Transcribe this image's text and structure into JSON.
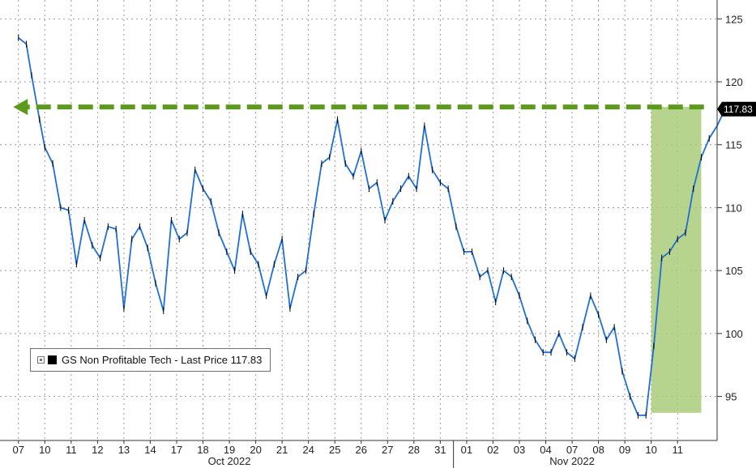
{
  "legend": {
    "label": "GS Non Profitable Tech - Last Price 117.83"
  },
  "colors": {
    "line": "#1f6fd6",
    "candle": "#000000",
    "arrow": "#5b9a1a",
    "highlight": "#a9cd7a",
    "last_price_badge": "#000000"
  },
  "chart_data": {
    "type": "line",
    "series": [
      {
        "name": "GS Non Profitable Tech",
        "x": [
          0,
          0.3,
          0.5,
          0.8,
          1.0,
          1.3,
          1.6,
          1.9,
          2.2,
          2.5,
          2.8,
          3.1,
          3.4,
          3.7,
          4.0,
          4.3,
          4.6,
          4.9,
          5.2,
          5.5,
          5.8,
          6.1,
          6.4,
          6.7,
          7.0,
          7.3,
          7.6,
          7.9,
          8.2,
          8.5,
          8.8,
          9.1,
          9.4,
          9.7,
          10.0,
          10.3,
          10.6,
          10.9,
          11.2,
          11.5,
          11.8,
          12.1,
          12.4,
          12.7,
          13.0,
          13.3,
          13.6,
          13.9,
          14.2,
          14.5,
          14.8,
          15.1,
          15.4,
          15.7,
          16.0,
          16.3,
          16.6,
          16.9,
          17.2,
          17.5,
          17.8,
          18.1,
          18.4,
          18.7,
          19.0,
          19.3,
          19.6,
          19.9,
          20.2,
          20.5,
          20.8,
          21.1,
          21.4,
          21.7,
          22.0,
          22.3,
          22.6,
          22.9,
          23.2,
          23.5,
          23.8,
          24.1,
          24.4,
          24.7,
          25.0,
          25.3,
          25.6,
          25.9,
          26.2,
          26.5,
          26.8
        ],
        "y": [
          123.5,
          123.0,
          120.5,
          117.0,
          114.8,
          113.5,
          110.0,
          109.8,
          105.5,
          109.0,
          107.0,
          106.0,
          108.5,
          108.3,
          102.0,
          107.5,
          108.5,
          106.8,
          104.0,
          101.8,
          109.0,
          107.5,
          108.0,
          113.0,
          111.5,
          110.5,
          108.0,
          106.5,
          105.0,
          109.5,
          106.5,
          105.5,
          103.0,
          105.5,
          107.5,
          102.0,
          104.5,
          105.0,
          109.5,
          113.5,
          114.0,
          117.0,
          113.5,
          112.5,
          114.5,
          111.5,
          112.0,
          109.0,
          110.5,
          111.5,
          112.5,
          111.5,
          116.5,
          113.0,
          112.0,
          111.5,
          108.5,
          106.5,
          106.5,
          104.5,
          105.0,
          102.5,
          105.0,
          104.5,
          103.0,
          101.0,
          99.5,
          98.5,
          98.5,
          100.0,
          98.5,
          98.0,
          100.5,
          103.0,
          101.5,
          99.5,
          100.5,
          97.0,
          95.0,
          93.5,
          93.5,
          99.0,
          106.0,
          106.5,
          107.5,
          108.0,
          111.5,
          114.0,
          115.5,
          116.5,
          117.83
        ]
      }
    ],
    "x_tick_labels": [
      "07",
      "10",
      "11",
      "12",
      "13",
      "14",
      "17",
      "18",
      "19",
      "20",
      "21",
      "24",
      "25",
      "26",
      "27",
      "28",
      "31",
      "01",
      "02",
      "03",
      "04",
      "07",
      "08",
      "09",
      "10",
      "11"
    ],
    "month_labels": [
      "Oct 2022",
      "Nov 2022"
    ],
    "y_ticks": [
      95,
      100,
      105,
      110,
      115,
      120,
      125
    ],
    "ylim": [
      91.5,
      126.5
    ],
    "xlim": [
      -0.7,
      26.5
    ],
    "last_price": "117.83",
    "annotations": {
      "dashed_arrow": {
        "y": 118,
        "x_from": 26.0,
        "x_to": -0.2
      },
      "highlight_box": {
        "x_from": 24.0,
        "x_to": 25.9,
        "y_from": 93.7,
        "y_to": 118
      }
    },
    "grid": "dotted",
    "xlabel": "",
    "ylabel": ""
  }
}
